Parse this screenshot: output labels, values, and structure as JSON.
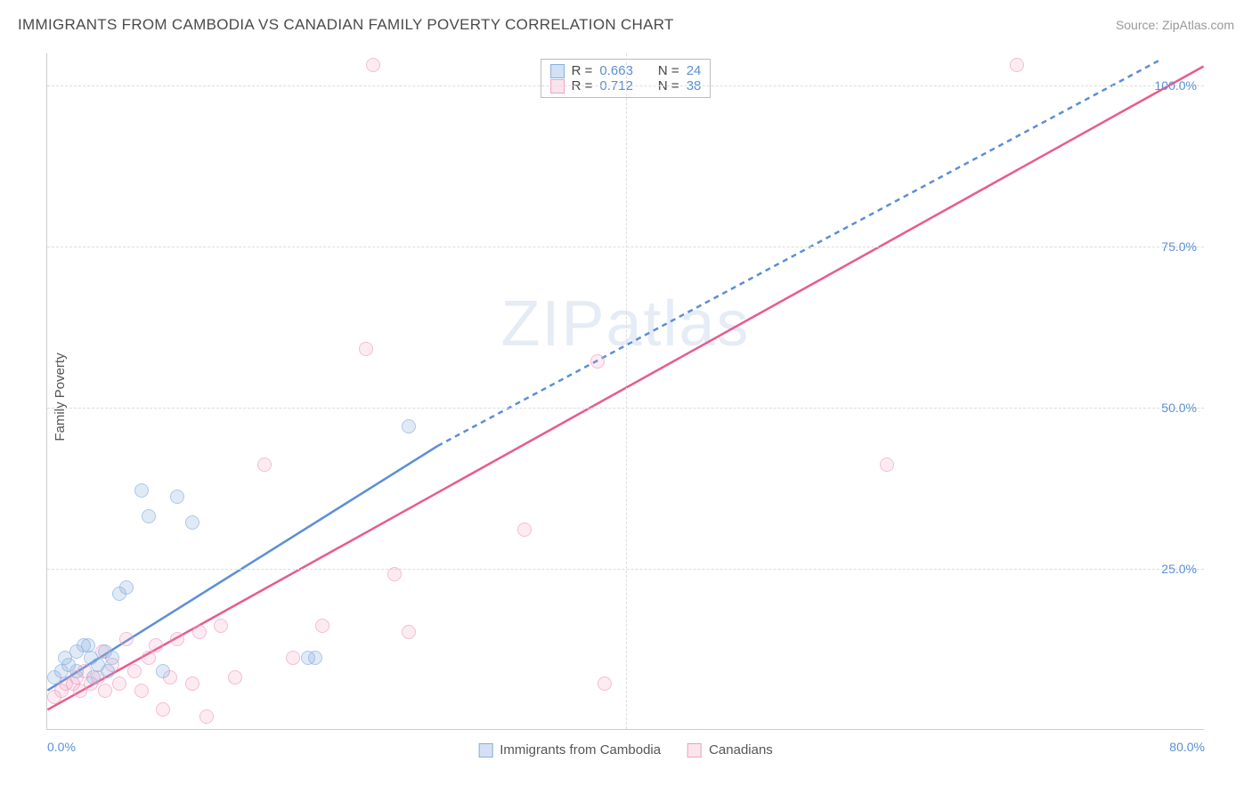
{
  "header": {
    "title": "IMMIGRANTS FROM CAMBODIA VS CANADIAN FAMILY POVERTY CORRELATION CHART",
    "source": "Source: ZipAtlas.com"
  },
  "axes": {
    "ylabel": "Family Poverty",
    "xlim": [
      0,
      80
    ],
    "ylim": [
      0,
      105
    ],
    "yticks": [
      25,
      50,
      75,
      100
    ],
    "ytick_labels": [
      "25.0%",
      "50.0%",
      "75.0%",
      "100.0%"
    ],
    "xticks": [
      0,
      80
    ],
    "xtick_labels": [
      "0.0%",
      "80.0%"
    ]
  },
  "style": {
    "blue": "#5b8fd6",
    "pink": "#e85a8f",
    "blue_fill": "rgba(130,170,220,0.35)",
    "pink_fill": "rgba(240,150,180,0.25)",
    "grid": "#ddd",
    "point_radius": 8,
    "font_axis": 14,
    "font_title": 17
  },
  "legend": {
    "rows": [
      {
        "color": "blue",
        "r_label": "R =",
        "r_val": "0.663",
        "n_label": "N =",
        "n_val": "24"
      },
      {
        "color": "pink",
        "r_label": "R =",
        "r_val": "0.712",
        "n_label": "N =",
        "n_val": "38"
      }
    ],
    "bottom": [
      {
        "color": "blue",
        "label": "Immigrants from Cambodia"
      },
      {
        "color": "pink",
        "label": "Canadians"
      }
    ]
  },
  "watermark": "ZIPatlas",
  "series": {
    "blue": {
      "trend_solid": {
        "x1": 0,
        "y1": 6,
        "x2": 27,
        "y2": 44
      },
      "trend_dash": {
        "x1": 27,
        "y1": 44,
        "x2": 77,
        "y2": 104
      },
      "points": [
        [
          0.5,
          8
        ],
        [
          1,
          9
        ],
        [
          1.2,
          11
        ],
        [
          1.5,
          10
        ],
        [
          2,
          12
        ],
        [
          2,
          9
        ],
        [
          2.5,
          13
        ],
        [
          3,
          11
        ],
        [
          3.5,
          10
        ],
        [
          4,
          12
        ],
        [
          4.5,
          11
        ],
        [
          5,
          21
        ],
        [
          5.5,
          22
        ],
        [
          6.5,
          37
        ],
        [
          7,
          33
        ],
        [
          8,
          9
        ],
        [
          9,
          36
        ],
        [
          10,
          32
        ],
        [
          18,
          11
        ],
        [
          18.5,
          11
        ],
        [
          25,
          47
        ],
        [
          3.2,
          8
        ],
        [
          2.8,
          13
        ],
        [
          4.2,
          9
        ]
      ]
    },
    "pink": {
      "trend_solid": {
        "x1": 0,
        "y1": 3,
        "x2": 80,
        "y2": 103
      },
      "points": [
        [
          0.5,
          5
        ],
        [
          1,
          6
        ],
        [
          1.3,
          7
        ],
        [
          1.8,
          7
        ],
        [
          2,
          8
        ],
        [
          2.3,
          6
        ],
        [
          2.6,
          9
        ],
        [
          3,
          7
        ],
        [
          3.5,
          8
        ],
        [
          3.8,
          12
        ],
        [
          4,
          6
        ],
        [
          4.5,
          10
        ],
        [
          5,
          7
        ],
        [
          5.5,
          14
        ],
        [
          6,
          9
        ],
        [
          6.5,
          6
        ],
        [
          7,
          11
        ],
        [
          7.5,
          13
        ],
        [
          8,
          3
        ],
        [
          8.5,
          8
        ],
        [
          9,
          14
        ],
        [
          10,
          7
        ],
        [
          10.5,
          15
        ],
        [
          11,
          2
        ],
        [
          12,
          16
        ],
        [
          13,
          8
        ],
        [
          15,
          41
        ],
        [
          17,
          11
        ],
        [
          19,
          16
        ],
        [
          22,
          59
        ],
        [
          22.5,
          103
        ],
        [
          24,
          24
        ],
        [
          25,
          15
        ],
        [
          33,
          31
        ],
        [
          38,
          57
        ],
        [
          38.5,
          7
        ],
        [
          58,
          41
        ],
        [
          67,
          103
        ]
      ]
    }
  }
}
